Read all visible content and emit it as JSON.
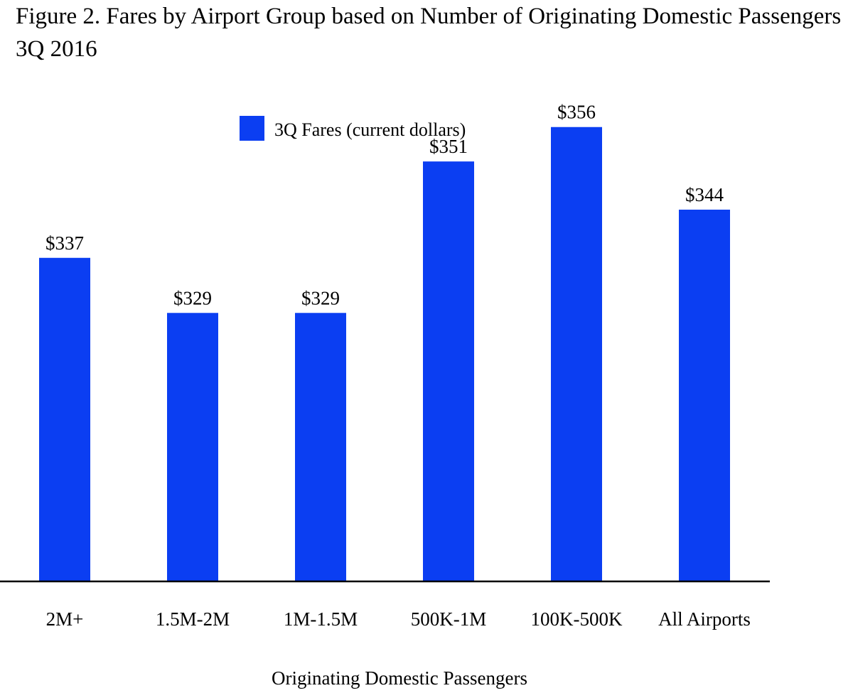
{
  "chart_data": {
    "type": "bar",
    "title": "Figure 2. Fares by Airport Group based on Number of Originating Domestic Passengers 3Q 2016",
    "xlabel": "Originating Domestic Passengers",
    "ylabel": "",
    "ylim": [
      290,
      360
    ],
    "grid": false,
    "legend_position": "top-center",
    "categories": [
      "2M+",
      "1.5M-2M",
      "1M-1.5M",
      "500K-1M",
      "100K-500K",
      "All Airports"
    ],
    "series": [
      {
        "name": "3Q Fares (current dollars)",
        "color": "#0b3ef2",
        "values": [
          337,
          329,
          329,
          351,
          356,
          344
        ],
        "labels": [
          "$337",
          "$329",
          "$329",
          "$351",
          "$356",
          "$344"
        ]
      }
    ]
  }
}
